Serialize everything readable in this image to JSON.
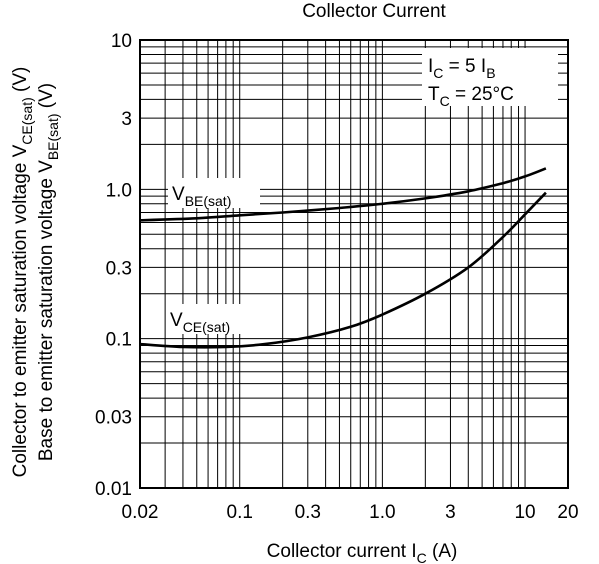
{
  "chart_data": {
    "type": "line",
    "title": "Collector Current",
    "xlabel": {
      "main": "Collector current  I",
      "sub": "C",
      "unit": "  (A)"
    },
    "ylabel": {
      "line1": {
        "main": "Collector to emitter saturation voltage  V",
        "sub": "CE(sat)",
        "unit": "  (V)"
      },
      "line2": {
        "main": "Base to emitter saturation voltage  V",
        "sub": "BE(sat)",
        "unit": "  (V)"
      }
    },
    "x_scale": "log",
    "y_scale": "log",
    "xlim": [
      0.02,
      20
    ],
    "ylim": [
      0.01,
      10
    ],
    "grid": true,
    "x_ticks": [
      {
        "value": 0.02,
        "label": "0.02"
      },
      {
        "value": 0.1,
        "label": "0.1"
      },
      {
        "value": 0.3,
        "label": "0.3"
      },
      {
        "value": 1.0,
        "label": "1.0"
      },
      {
        "value": 3,
        "label": "3"
      },
      {
        "value": 10,
        "label": "10"
      },
      {
        "value": 20,
        "label": "20"
      }
    ],
    "y_ticks": [
      {
        "value": 10,
        "label": "10"
      },
      {
        "value": 3,
        "label": "3"
      },
      {
        "value": 1.0,
        "label": "1.0"
      },
      {
        "value": 0.3,
        "label": "0.3"
      },
      {
        "value": 0.1,
        "label": "0.1"
      },
      {
        "value": 0.03,
        "label": "0.03"
      },
      {
        "value": 0.01,
        "label": "0.01"
      }
    ],
    "annotations": [
      {
        "parts": [
          {
            "t": "I",
            "sub": false
          },
          {
            "t": "C",
            "sub": true
          },
          {
            "t": " = 5 I",
            "sub": false
          },
          {
            "t": "B",
            "sub": true
          }
        ]
      },
      {
        "parts": [
          {
            "t": "T",
            "sub": false
          },
          {
            "t": "C",
            "sub": true
          },
          {
            "t": " = 25°C",
            "sub": false
          }
        ]
      }
    ],
    "series": [
      {
        "name": "V_BE(sat)",
        "label_main": "V",
        "label_sub": "BE(sat)",
        "x": [
          0.02,
          0.05,
          0.1,
          0.2,
          0.5,
          1.0,
          2.0,
          4.0,
          7.0,
          10.0,
          14.0
        ],
        "y": [
          0.62,
          0.64,
          0.67,
          0.7,
          0.75,
          0.8,
          0.87,
          0.97,
          1.1,
          1.22,
          1.38
        ]
      },
      {
        "name": "V_CE(sat)",
        "label_main": "V",
        "label_sub": "CE(sat)",
        "x": [
          0.02,
          0.04,
          0.08,
          0.15,
          0.3,
          0.6,
          1.0,
          2.0,
          4.0,
          7.0,
          10.0,
          14.0
        ],
        "y": [
          0.092,
          0.088,
          0.088,
          0.092,
          0.102,
          0.12,
          0.145,
          0.2,
          0.3,
          0.48,
          0.68,
          0.95
        ]
      }
    ]
  }
}
